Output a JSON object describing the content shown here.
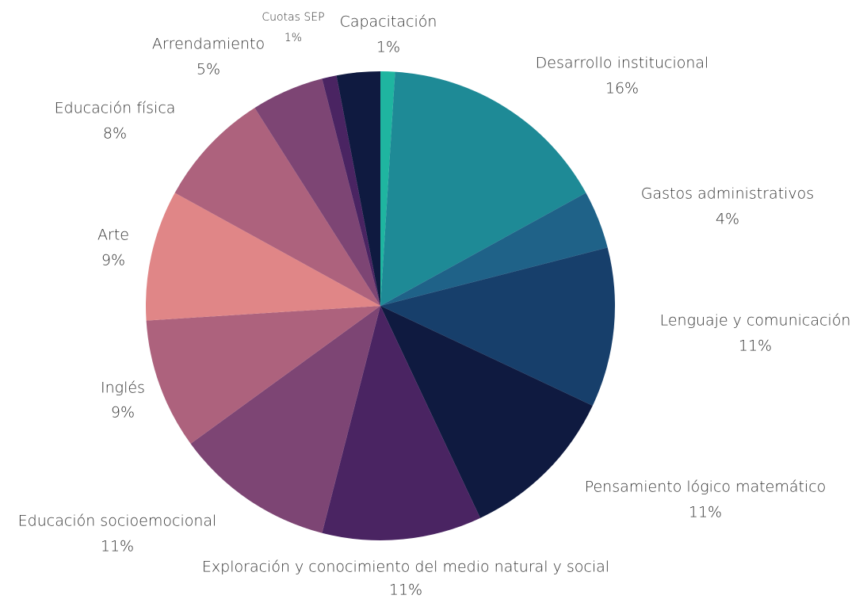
{
  "chart_data": {
    "type": "pie",
    "categories": [
      "Capacitación",
      "Desarrollo institucional",
      "Gastos administrativos",
      "Lenguaje y comunicación",
      "Pensamiento lógico matemático",
      "Exploración y conocimiento del medio natural y social",
      "Educación socioemocional",
      "Inglés",
      "Arte",
      "Educación física",
      "Arrendamiento",
      "Cuotas SEP",
      null
    ],
    "values": [
      1,
      16,
      4,
      11,
      11,
      11,
      11,
      9,
      9,
      8,
      5,
      1,
      3
    ],
    "value_labels": [
      "1%",
      "16%",
      "4%",
      "11%",
      "11%",
      "11%",
      "11%",
      "9%",
      "9%",
      "8%",
      "5%",
      "1%",
      null
    ],
    "colors": [
      "#1fb5a0",
      "#1e8a96",
      "#1f6288",
      "#173f6b",
      "#0f1a40",
      "#4a2462",
      "#7d4574",
      "#ad627d",
      "#e08687",
      "#ad627d",
      "#7d4574",
      "#4a2462",
      "#0f1a40"
    ]
  }
}
